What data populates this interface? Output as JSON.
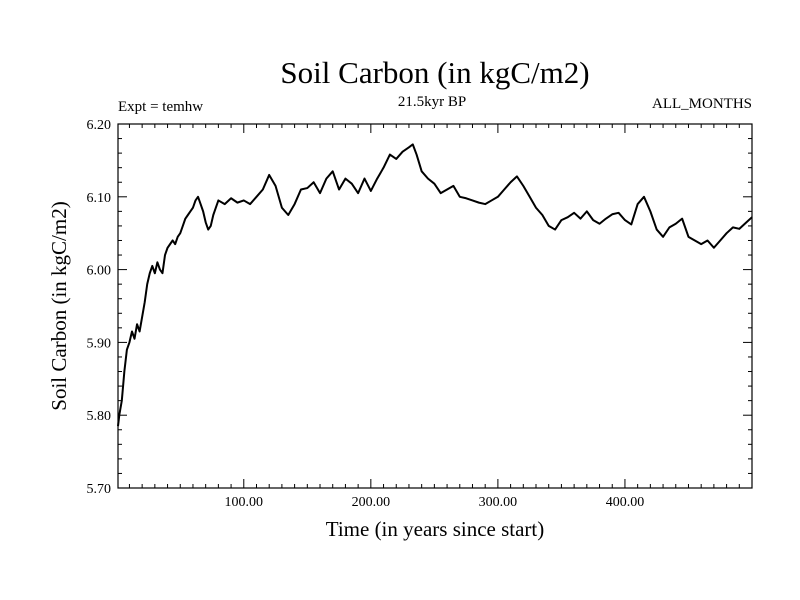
{
  "chart_data": {
    "type": "line",
    "title": "Soil Carbon (in kgC/m2)",
    "subtitle": "21.5kyr BP",
    "left_note": "Expt = temhw",
    "right_note": "ALL_MONTHS",
    "xlabel": "Time (in years since start)",
    "ylabel": "Soil Carbon (in kgC/m2)",
    "xlim": [
      1,
      500
    ],
    "ylim": [
      5.7,
      6.2
    ],
    "x_ticks": [
      100,
      200,
      300,
      400
    ],
    "x_tick_labels": [
      "100.00",
      "200.00",
      "300.00",
      "400.00"
    ],
    "y_ticks": [
      5.7,
      5.8,
      5.9,
      6.0,
      6.1,
      6.2
    ],
    "y_tick_labels": [
      "5.70",
      "5.80",
      "5.90",
      "6.00",
      "6.10",
      "6.20"
    ],
    "grid": false,
    "line_color": "#000000",
    "series": [
      {
        "x": [
          1,
          2,
          4,
          6,
          8,
          10,
          12,
          14,
          16,
          18,
          20,
          22,
          24,
          26,
          28,
          30,
          32,
          34,
          36,
          38,
          40,
          42,
          44,
          46,
          48,
          50,
          52,
          54,
          56,
          58,
          60,
          62,
          64,
          66,
          68,
          70,
          72,
          74,
          76,
          78,
          80,
          85,
          90,
          95,
          100,
          105,
          110,
          115,
          120,
          125,
          130,
          135,
          140,
          145,
          150,
          155,
          160,
          165,
          170,
          175,
          180,
          185,
          190,
          195,
          200,
          205,
          210,
          215,
          220,
          225,
          230,
          233,
          236,
          240,
          245,
          250,
          255,
          260,
          265,
          270,
          275,
          280,
          285,
          290,
          295,
          300,
          305,
          310,
          315,
          320,
          325,
          330,
          335,
          340,
          345,
          350,
          355,
          360,
          365,
          370,
          375,
          380,
          385,
          390,
          395,
          400,
          405,
          410,
          415,
          420,
          425,
          430,
          435,
          440,
          445,
          450,
          455,
          460,
          465,
          470,
          475,
          480,
          485,
          490,
          495,
          500
        ],
        "values": [
          5.785,
          5.8,
          5.82,
          5.86,
          5.89,
          5.9,
          5.915,
          5.905,
          5.925,
          5.915,
          5.935,
          5.955,
          5.98,
          5.995,
          6.005,
          5.995,
          6.01,
          6.0,
          5.995,
          6.02,
          6.03,
          6.035,
          6.04,
          6.035,
          6.045,
          6.05,
          6.06,
          6.07,
          6.075,
          6.08,
          6.085,
          6.095,
          6.1,
          6.09,
          6.08,
          6.065,
          6.055,
          6.06,
          6.075,
          6.085,
          6.095,
          6.09,
          6.098,
          6.092,
          6.095,
          6.09,
          6.1,
          6.11,
          6.13,
          6.115,
          6.085,
          6.075,
          6.09,
          6.11,
          6.112,
          6.12,
          6.105,
          6.125,
          6.135,
          6.11,
          6.125,
          6.118,
          6.105,
          6.125,
          6.108,
          6.125,
          6.14,
          6.158,
          6.152,
          6.162,
          6.168,
          6.172,
          6.158,
          6.135,
          6.125,
          6.118,
          6.105,
          6.11,
          6.115,
          6.1,
          6.098,
          6.095,
          6.092,
          6.09,
          6.095,
          6.1,
          6.11,
          6.12,
          6.128,
          6.115,
          6.1,
          6.085,
          6.075,
          6.06,
          6.055,
          6.068,
          6.072,
          6.078,
          6.07,
          6.08,
          6.068,
          6.063,
          6.07,
          6.076,
          6.078,
          6.068,
          6.062,
          6.09,
          6.1,
          6.08,
          6.055,
          6.045,
          6.058,
          6.063,
          6.07,
          6.045,
          6.04,
          6.035,
          6.04,
          6.03,
          6.04,
          6.05,
          6.058,
          6.056,
          6.064,
          6.072
        ]
      }
    ]
  }
}
